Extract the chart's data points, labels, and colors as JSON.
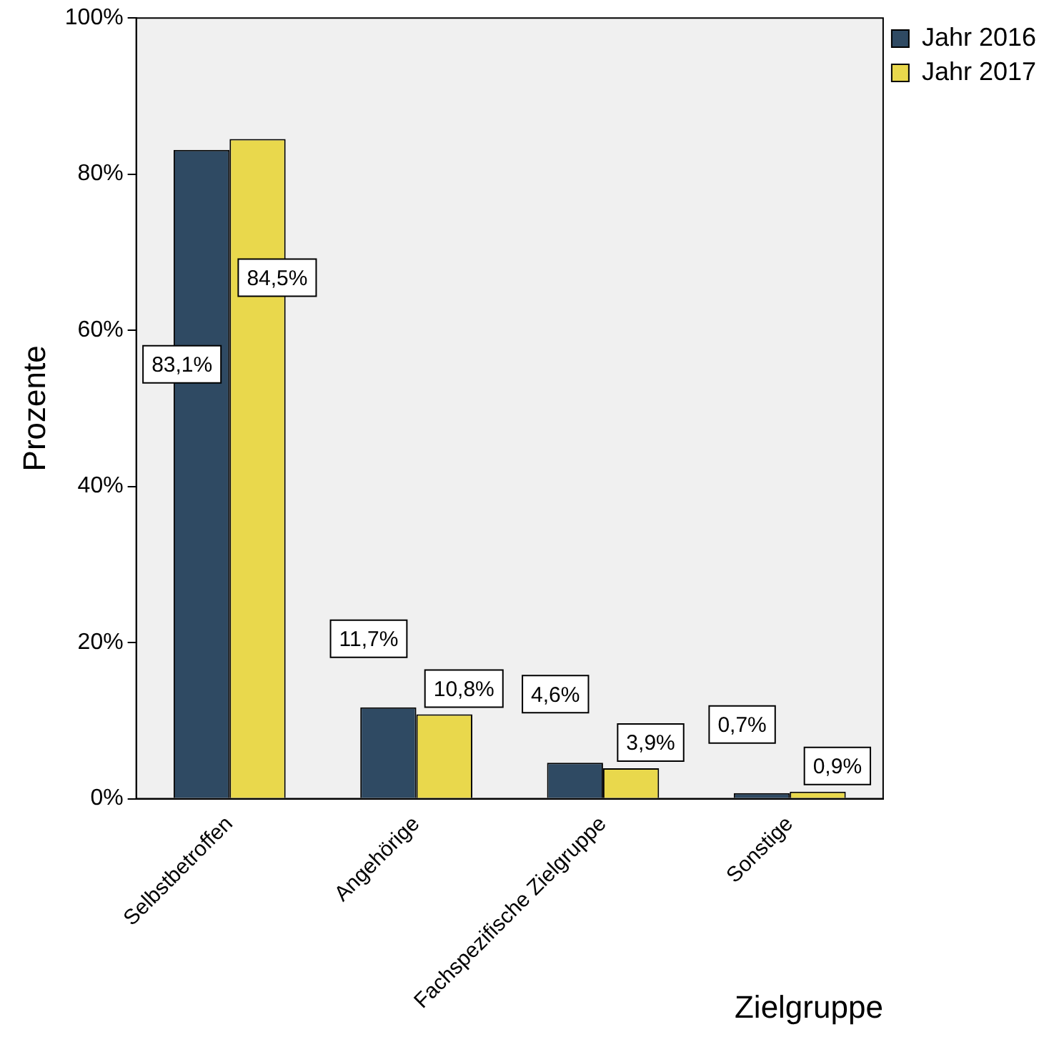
{
  "chart_data": {
    "type": "bar",
    "xlabel": "Zielgruppe",
    "ylabel": "Prozente",
    "categories": [
      "Selbstbetroffen",
      "Angehörige",
      "Fachspezifische Zielgruppe",
      "Sonstige"
    ],
    "series": [
      {
        "name": "Jahr 2016",
        "color": "#2f4a63",
        "values": [
          83.1,
          11.7,
          4.6,
          0.7
        ],
        "value_labels": [
          "83,1%",
          "11,7%",
          "4,6%",
          "0,7%"
        ]
      },
      {
        "name": "Jahr 2017",
        "color": "#e9d84c",
        "values": [
          84.5,
          10.8,
          3.9,
          0.9
        ],
        "value_labels": [
          "84,5%",
          "10,8%",
          "3,9%",
          "0,9%"
        ]
      }
    ],
    "ylim": [
      0,
      100
    ],
    "yticks": [
      {
        "value": 0,
        "label": "0%"
      },
      {
        "value": 20,
        "label": "20%"
      },
      {
        "value": 40,
        "label": "40%"
      },
      {
        "value": 60,
        "label": "60%"
      },
      {
        "value": 80,
        "label": "80%"
      },
      {
        "value": 100,
        "label": "100%"
      }
    ],
    "grid": false,
    "legend": "right"
  }
}
